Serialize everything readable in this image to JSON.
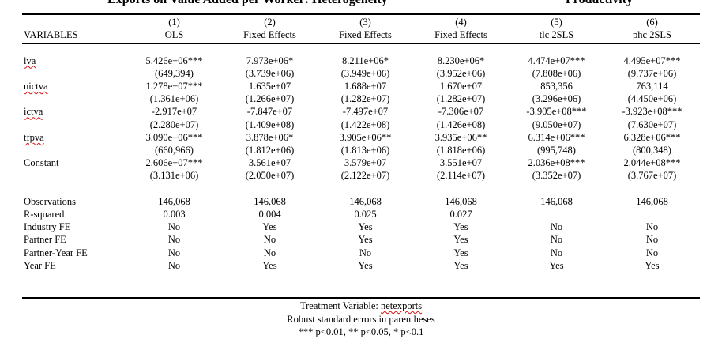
{
  "title": {
    "left": "Exports on Value Added per Worker: Heterogeneity",
    "right": "Productivity"
  },
  "header": {
    "row_label": "VARIABLES",
    "numbers": [
      "(1)",
      "(2)",
      "(3)",
      "(4)",
      "(5)",
      "(6)"
    ],
    "models": [
      "OLS",
      "Fixed Effects",
      "Fixed Effects",
      "Fixed Effects",
      "tlc 2SLS",
      "phc 2SLS"
    ]
  },
  "variables": [
    {
      "name": "lva",
      "coefs": [
        "5.426e+06***",
        "7.973e+06*",
        "8.211e+06*",
        "8.230e+06*",
        "4.474e+07***",
        "4.495e+07***"
      ],
      "ses": [
        "(649,394)",
        "(3.739e+06)",
        "(3.949e+06)",
        "(3.952e+06)",
        "(7.808e+06)",
        "(9.737e+06)"
      ]
    },
    {
      "name": "nictva",
      "coefs": [
        "1.278e+07***",
        "1.635e+07",
        "1.688e+07",
        "1.670e+07",
        "853,356",
        "763,114"
      ],
      "ses": [
        "(1.361e+06)",
        "(1.266e+07)",
        "(1.282e+07)",
        "(1.282e+07)",
        "(3.296e+06)",
        "(4.450e+06)"
      ]
    },
    {
      "name": "ictva",
      "coefs": [
        "-2.917e+07",
        "-7.847e+07",
        "-7.497e+07",
        "-7.306e+07",
        "-3.905e+08***",
        "-3.923e+08***"
      ],
      "ses": [
        "(2.280e+07)",
        "(1.409e+08)",
        "(1.422e+08)",
        "(1.426e+08)",
        "(9.050e+07)",
        "(7.630e+07)"
      ]
    },
    {
      "name": "tfpva",
      "coefs": [
        "3.090e+06***",
        "3.878e+06*",
        "3.905e+06**",
        "3.935e+06**",
        "6.314e+06***",
        "6.328e+06***"
      ],
      "ses": [
        "(660,966)",
        "(1.812e+06)",
        "(1.813e+06)",
        "(1.818e+06)",
        "(995,748)",
        "(800,348)"
      ]
    },
    {
      "name": "Constant",
      "coefs": [
        "2.606e+07***",
        "3.561e+07",
        "3.579e+07",
        "3.551e+07",
        "2.036e+08***",
        "2.044e+08***"
      ],
      "ses": [
        "(3.131e+06)",
        "(2.050e+07)",
        "(2.122e+07)",
        "(2.114e+07)",
        "(3.352e+07)",
        "(3.767e+07)"
      ]
    }
  ],
  "stats": [
    {
      "name": "Observations",
      "values": [
        "146,068",
        "146,068",
        "146,068",
        "146,068",
        "146,068",
        "146,068"
      ]
    },
    {
      "name": "R-squared",
      "values": [
        "0.003",
        "0.004",
        "0.025",
        "0.027",
        "",
        ""
      ]
    },
    {
      "name": "Industry FE",
      "values": [
        "No",
        "Yes",
        "Yes",
        "Yes",
        "No",
        "No"
      ]
    },
    {
      "name": "Partner FE",
      "values": [
        "No",
        "No",
        "Yes",
        "Yes",
        "No",
        "No"
      ]
    },
    {
      "name": "Partner-Year FE",
      "values": [
        "No",
        "No",
        "No",
        "Yes",
        "No",
        "No"
      ]
    },
    {
      "name": "Year FE",
      "values": [
        "No",
        "Yes",
        "Yes",
        "Yes",
        "Yes",
        "Yes"
      ]
    }
  ],
  "notes": {
    "treatment_prefix": "Treatment Variable: ",
    "treatment_var": "netexports",
    "robust": "Robust standard errors in parentheses",
    "significance": "*** p<0.01, ** p<0.05, * p<0.1"
  }
}
